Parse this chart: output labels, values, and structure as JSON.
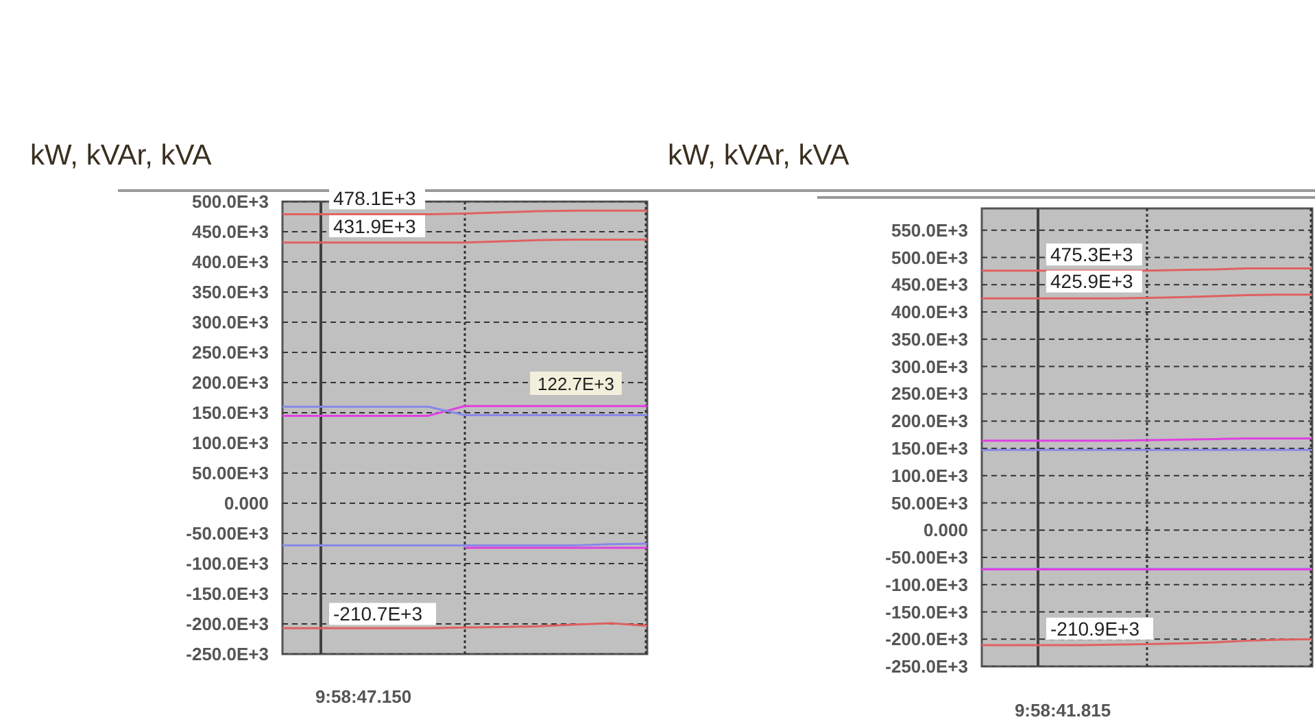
{
  "chart_data": [
    {
      "type": "line",
      "ylabel": "kW, kVAr, kVA",
      "categories": [
        null,
        null,
        null,
        null,
        null,
        null,
        null,
        null,
        null,
        null,
        null
      ],
      "series": [
        {
          "color": "#e06060",
          "values": [
            479000,
            479000,
            479000,
            479000,
            479000,
            480000,
            482000,
            484000,
            485000,
            485000,
            485000
          ]
        },
        {
          "color": "#e06060",
          "values": [
            432000,
            432000,
            432000,
            432000,
            432000,
            432000,
            434000,
            436000,
            437000,
            437000,
            437000
          ]
        },
        {
          "color": "#e040e0",
          "values": [
            145000,
            145000,
            145000,
            145000,
            145000,
            161000,
            161000,
            161000,
            161000,
            161000,
            161000
          ]
        },
        {
          "color": "#8888e8",
          "values": [
            160000,
            160000,
            160000,
            160000,
            160000,
            146000,
            146000,
            146000,
            146000,
            146000,
            146000
          ]
        },
        {
          "color": "#8888e8",
          "values": [
            -70000,
            -70000,
            -70000,
            -70000,
            -70000,
            -70000,
            -70000,
            -70000,
            -70000,
            -68000,
            -67000
          ]
        },
        {
          "color": "#e040e0",
          "values": [
            null,
            null,
            null,
            null,
            null,
            -74000,
            -74000,
            -74000,
            -74000,
            -74000,
            -74000
          ]
        },
        {
          "color": "#e06060",
          "values": [
            -207000,
            -207000,
            -207000,
            -207000,
            -207000,
            -206000,
            -205000,
            -204000,
            -201000,
            -199000,
            -203000
          ]
        }
      ],
      "ylim": [
        -250000,
        500000
      ],
      "yticks": [
        {
          "value": 500000,
          "label": "500.0E+3"
        },
        {
          "value": 450000,
          "label": "450.0E+3"
        },
        {
          "value": 400000,
          "label": "400.0E+3"
        },
        {
          "value": 350000,
          "label": "350.0E+3"
        },
        {
          "value": 300000,
          "label": "300.0E+3"
        },
        {
          "value": 250000,
          "label": "250.0E+3"
        },
        {
          "value": 200000,
          "label": "200.0E+3"
        },
        {
          "value": 150000,
          "label": "150.0E+3"
        },
        {
          "value": 100000,
          "label": "100.0E+3"
        },
        {
          "value": 50000,
          "label": "50.00E+3"
        },
        {
          "value": 0,
          "label": "0.000"
        },
        {
          "value": -50000,
          "label": "-50.00E+3"
        },
        {
          "value": -100000,
          "label": "-100.0E+3"
        },
        {
          "value": -150000,
          "label": "-150.0E+3"
        },
        {
          "value": -200000,
          "label": "-200.0E+3"
        },
        {
          "value": -250000,
          "label": "-250.0E+3"
        }
      ],
      "grid": true,
      "annotations": [
        {
          "text": "478.1E+3",
          "y": 478100
        },
        {
          "text": "431.9E+3",
          "y": 431900
        },
        "122.7E+3",
        {
          "text": "-210.7E+3",
          "y": -210700
        },
        "9:58:47.150"
      ]
    },
    {
      "type": "line",
      "ylabel": "kW, kVAr, kVA",
      "categories": [
        null,
        null,
        null,
        null,
        null,
        null,
        null,
        null,
        null,
        null,
        null
      ],
      "series": [
        {
          "color": "#e06060",
          "values": [
            476000,
            476000,
            476000,
            476000,
            476000,
            476000,
            477000,
            478000,
            480000,
            480000,
            480000
          ]
        },
        {
          "color": "#e06060",
          "values": [
            425000,
            425000,
            425000,
            425000,
            425000,
            426000,
            427000,
            429000,
            431000,
            432000,
            432000
          ]
        },
        {
          "color": "#e040e0",
          "values": [
            164000,
            164000,
            164000,
            164000,
            164000,
            165000,
            166000,
            167000,
            168000,
            168000,
            168000
          ]
        },
        {
          "color": "#8888e8",
          "values": [
            147000,
            147000,
            147000,
            147000,
            147000,
            147000,
            147000,
            147000,
            147000,
            147000,
            147000
          ]
        },
        {
          "color": "#8888e8",
          "values": [
            -71000,
            -71000,
            -71000,
            -71000,
            -71000,
            -71000,
            -71000,
            -71000,
            -71000,
            -71000,
            -71000
          ]
        },
        {
          "color": "#e040e0",
          "values": [
            -72000,
            -72000,
            -72000,
            -72000,
            -72000,
            -72000,
            -72000,
            -72000,
            -72000,
            -72000,
            -72000
          ]
        },
        {
          "color": "#e06060",
          "values": [
            -211000,
            -211000,
            -211000,
            -211000,
            -210000,
            -209000,
            -208000,
            -206000,
            -203000,
            -201000,
            -200000
          ]
        }
      ],
      "ylim": [
        -250000,
        590000
      ],
      "yticks": [
        {
          "value": 550000,
          "label": "550.0E+3"
        },
        {
          "value": 500000,
          "label": "500.0E+3"
        },
        {
          "value": 450000,
          "label": "450.0E+3"
        },
        {
          "value": 400000,
          "label": "400.0E+3"
        },
        {
          "value": 350000,
          "label": "350.0E+3"
        },
        {
          "value": 300000,
          "label": "300.0E+3"
        },
        {
          "value": 250000,
          "label": "250.0E+3"
        },
        {
          "value": 200000,
          "label": "200.0E+3"
        },
        {
          "value": 150000,
          "label": "150.0E+3"
        },
        {
          "value": 100000,
          "label": "100.0E+3"
        },
        {
          "value": 50000,
          "label": "50.00E+3"
        },
        {
          "value": 0,
          "label": "0.000"
        },
        {
          "value": -50000,
          "label": "-50.00E+3"
        },
        {
          "value": -100000,
          "label": "-100.0E+3"
        },
        {
          "value": -150000,
          "label": "-150.0E+3"
        },
        {
          "value": -200000,
          "label": "-200.0E+3"
        },
        {
          "value": -250000,
          "label": "-250.0E+3"
        }
      ],
      "grid": true,
      "annotations": [
        {
          "text": "475.3E+3",
          "y": 475300
        },
        {
          "text": "425.9E+3",
          "y": 425900
        },
        {
          "text": "-210.9E+3",
          "y": -210900
        },
        "9:58:41.815"
      ]
    }
  ]
}
